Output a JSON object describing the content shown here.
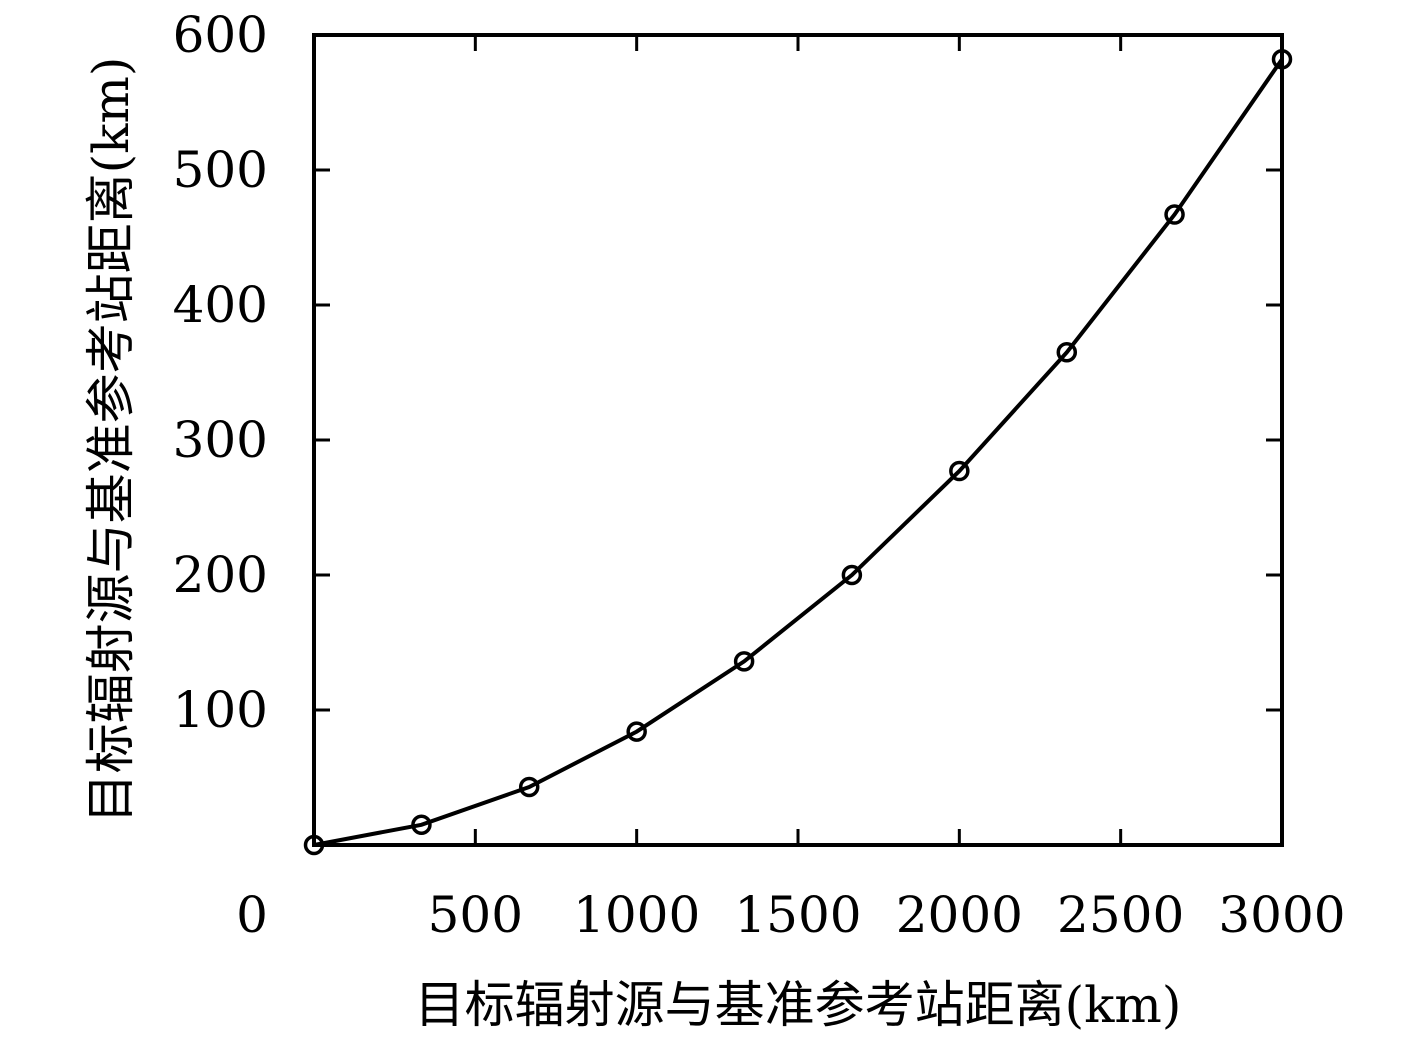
{
  "chart_data": {
    "type": "line",
    "title": "",
    "xlabel": "目标辐射源与基准参考站距离(km)",
    "ylabel": "目标辐射源与基准参考站距离(km)",
    "xlim": [
      0,
      3000
    ],
    "ylim": [
      0,
      600
    ],
    "x_ticks": [
      500,
      1000,
      1500,
      2000,
      2500,
      3000
    ],
    "y_ticks": [
      100,
      200,
      300,
      400,
      500,
      600
    ],
    "origin_label": "0",
    "grid": false,
    "legend": "none",
    "line_color": "#000000",
    "marker": "open-circle",
    "series": [
      {
        "x": [
          0,
          333,
          667,
          1000,
          1333,
          1667,
          2000,
          2333,
          2667,
          3000
        ],
        "y": [
          0,
          15,
          43,
          84,
          136,
          200,
          277,
          365,
          467,
          582
        ]
      }
    ]
  }
}
